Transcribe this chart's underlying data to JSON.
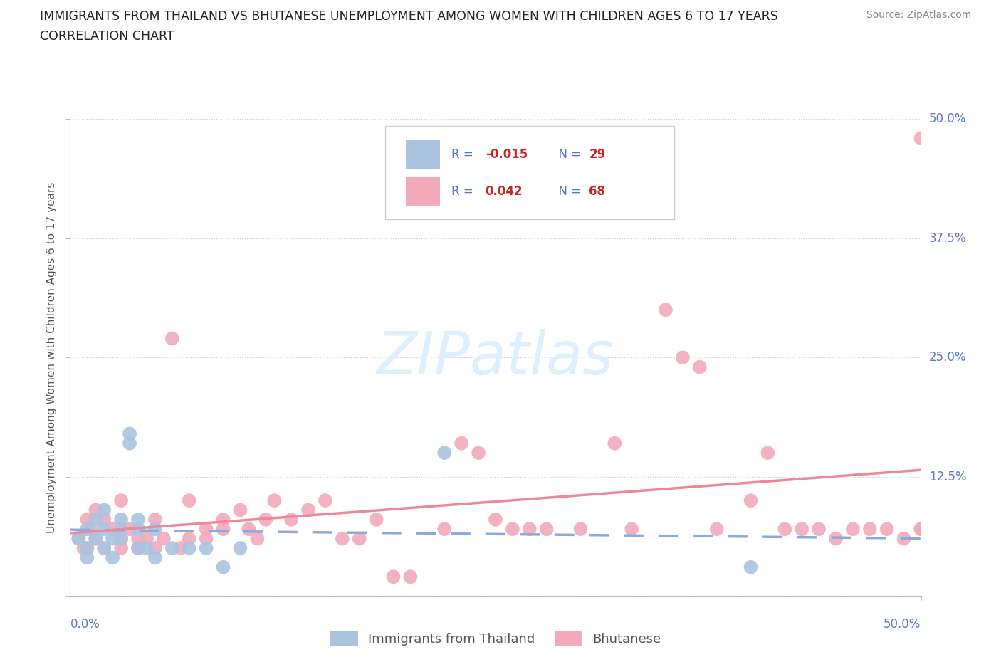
{
  "title_line1": "IMMIGRANTS FROM THAILAND VS BHUTANESE UNEMPLOYMENT AMONG WOMEN WITH CHILDREN AGES 6 TO 17 YEARS",
  "title_line2": "CORRELATION CHART",
  "source_text": "Source: ZipAtlas.com",
  "ylabel": "Unemployment Among Women with Children Ages 6 to 17 years",
  "xlim": [
    0.0,
    0.5
  ],
  "ylim": [
    0.0,
    0.5
  ],
  "yticks": [
    0.0,
    0.125,
    0.25,
    0.375,
    0.5
  ],
  "ytick_labels": [
    "",
    "12.5%",
    "25.0%",
    "37.5%",
    "50.0%"
  ],
  "grid_color": "#cccccc",
  "background_color": "#ffffff",
  "thailand_color": "#aac4e0",
  "bhutan_color": "#f2aabb",
  "thailand_line_color": "#88aadd",
  "bhutan_line_color": "#ee8899",
  "watermark_color": "#ddeeff",
  "label_color": "#5577cc",
  "title_color": "#222222",
  "source_color": "#888888",
  "thailand_x": [
    0.005,
    0.01,
    0.01,
    0.01,
    0.015,
    0.015,
    0.02,
    0.02,
    0.02,
    0.025,
    0.025,
    0.03,
    0.03,
    0.03,
    0.035,
    0.035,
    0.04,
    0.04,
    0.04,
    0.045,
    0.05,
    0.05,
    0.06,
    0.07,
    0.08,
    0.09,
    0.1,
    0.22,
    0.4
  ],
  "thailand_y": [
    0.06,
    0.07,
    0.05,
    0.04,
    0.08,
    0.06,
    0.09,
    0.07,
    0.05,
    0.06,
    0.04,
    0.08,
    0.07,
    0.06,
    0.17,
    0.16,
    0.08,
    0.07,
    0.05,
    0.05,
    0.07,
    0.04,
    0.05,
    0.05,
    0.05,
    0.03,
    0.05,
    0.15,
    0.03
  ],
  "bhutan_x": [
    0.005,
    0.008,
    0.01,
    0.01,
    0.012,
    0.015,
    0.015,
    0.02,
    0.02,
    0.025,
    0.03,
    0.03,
    0.03,
    0.035,
    0.04,
    0.04,
    0.045,
    0.05,
    0.05,
    0.055,
    0.06,
    0.065,
    0.07,
    0.07,
    0.08,
    0.08,
    0.09,
    0.09,
    0.1,
    0.105,
    0.11,
    0.115,
    0.12,
    0.13,
    0.14,
    0.15,
    0.16,
    0.17,
    0.18,
    0.19,
    0.2,
    0.22,
    0.23,
    0.24,
    0.25,
    0.26,
    0.27,
    0.28,
    0.3,
    0.32,
    0.33,
    0.35,
    0.36,
    0.37,
    0.38,
    0.4,
    0.41,
    0.42,
    0.43,
    0.44,
    0.45,
    0.46,
    0.47,
    0.48,
    0.49,
    0.5,
    0.5,
    0.5
  ],
  "bhutan_y": [
    0.06,
    0.05,
    0.08,
    0.05,
    0.07,
    0.09,
    0.06,
    0.08,
    0.05,
    0.07,
    0.1,
    0.06,
    0.05,
    0.07,
    0.06,
    0.05,
    0.06,
    0.08,
    0.05,
    0.06,
    0.27,
    0.05,
    0.06,
    0.1,
    0.07,
    0.06,
    0.08,
    0.07,
    0.09,
    0.07,
    0.06,
    0.08,
    0.1,
    0.08,
    0.09,
    0.1,
    0.06,
    0.06,
    0.08,
    0.02,
    0.02,
    0.07,
    0.16,
    0.15,
    0.08,
    0.07,
    0.07,
    0.07,
    0.07,
    0.16,
    0.07,
    0.3,
    0.25,
    0.24,
    0.07,
    0.1,
    0.15,
    0.07,
    0.07,
    0.07,
    0.06,
    0.07,
    0.07,
    0.07,
    0.06,
    0.07,
    0.07,
    0.48
  ]
}
